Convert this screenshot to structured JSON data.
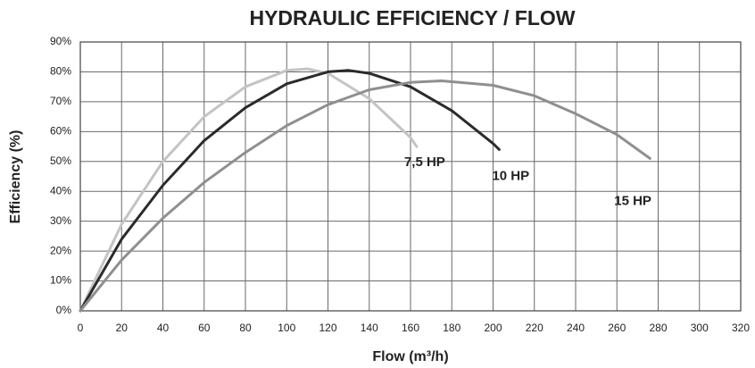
{
  "chart_data": {
    "type": "line",
    "title": "HYDRAULIC EFFICIENCY / FLOW",
    "x_label": "Flow (m³/h)",
    "y_label": "Efficiency (%)",
    "xlim": [
      0,
      320
    ],
    "xticks": [
      0,
      20,
      40,
      60,
      80,
      100,
      120,
      140,
      160,
      180,
      200,
      220,
      240,
      260,
      280,
      300,
      320
    ],
    "ylim": [
      0,
      90
    ],
    "yticks": [
      {
        "value": 0,
        "label": "0%"
      },
      {
        "value": 10,
        "label": "10%"
      },
      {
        "value": 20,
        "label": "20%"
      },
      {
        "value": 30,
        "label": "30%"
      },
      {
        "value": 40,
        "label": "40%"
      },
      {
        "value": 50,
        "label": "50%"
      },
      {
        "value": 60,
        "label": "60%"
      },
      {
        "value": 70,
        "label": "70%"
      },
      {
        "value": 80,
        "label": "80%"
      },
      {
        "value": 90,
        "label": "90%"
      }
    ],
    "grid": true,
    "series": [
      {
        "name": "7,5 HP",
        "color": "#c4c4c4",
        "x": [
          0,
          20,
          40,
          60,
          80,
          100,
          110,
          120,
          140,
          160,
          163
        ],
        "values": [
          0,
          29,
          50,
          65,
          75,
          80.5,
          81,
          79.5,
          71,
          58,
          55
        ]
      },
      {
        "name": "10 HP",
        "color": "#2b2b2b",
        "x": [
          0,
          20,
          40,
          60,
          80,
          100,
          120,
          130,
          140,
          160,
          180,
          200,
          203
        ],
        "values": [
          0,
          24,
          42,
          57,
          68,
          76,
          80,
          80.5,
          79.5,
          75,
          67,
          56,
          54
        ]
      },
      {
        "name": "15 HP",
        "color": "#8f8f8f",
        "x": [
          0,
          20,
          40,
          60,
          80,
          100,
          120,
          140,
          160,
          175,
          200,
          220,
          240,
          260,
          276
        ],
        "values": [
          0,
          17,
          31,
          43,
          53,
          62,
          69,
          74,
          76.5,
          77,
          75.5,
          72,
          66,
          59,
          51
        ]
      }
    ]
  }
}
